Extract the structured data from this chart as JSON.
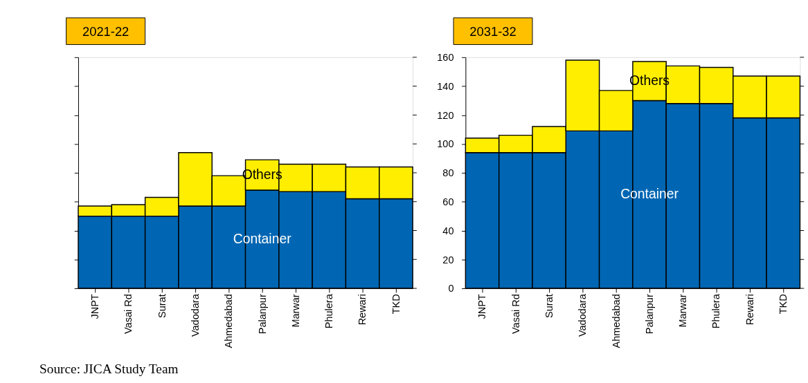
{
  "chart_data": [
    {
      "type": "bar",
      "title": "2021-22",
      "stacked": true,
      "tick_labels": "x",
      "categories": [
        "JNPT",
        "Vasai Rd",
        "Surat",
        "Vadodara",
        "Ahmedabad",
        "Palanpur",
        "Marwar",
        "Phulera",
        "Rewari",
        "TKD"
      ],
      "ylim": [
        0,
        160
      ],
      "yticks": [
        0,
        20,
        40,
        60,
        80,
        100,
        120,
        140,
        160
      ],
      "series": [
        {
          "name": "Container",
          "color": "#0066b3",
          "values": [
            50,
            50,
            50,
            57,
            57,
            68,
            67,
            67,
            62,
            62
          ]
        },
        {
          "name": "Others",
          "color": "#ffee00",
          "values": [
            7,
            8,
            13,
            37,
            21,
            21,
            19,
            19,
            22,
            22
          ]
        }
      ],
      "annotations": [
        "Source: JICA Study Team"
      ]
    },
    {
      "type": "bar",
      "title": "2031-32",
      "stacked": true,
      "categories": [
        "JNPT",
        "Vasai Rd",
        "Surat",
        "Vadodara",
        "Ahmedabad",
        "Palanpur",
        "Marwar",
        "Phulera",
        "Rewari",
        "TKD"
      ],
      "ylim": [
        0,
        160
      ],
      "yticks": [
        0,
        20,
        40,
        60,
        80,
        100,
        120,
        140,
        160
      ],
      "series": [
        {
          "name": "Container",
          "color": "#0066b3",
          "values": [
            94,
            94,
            94,
            109,
            109,
            130,
            128,
            128,
            118,
            118
          ]
        },
        {
          "name": "Others",
          "color": "#ffee00",
          "values": [
            10,
            12,
            18,
            49,
            28,
            27,
            26,
            25,
            29,
            29
          ]
        }
      ]
    }
  ]
}
